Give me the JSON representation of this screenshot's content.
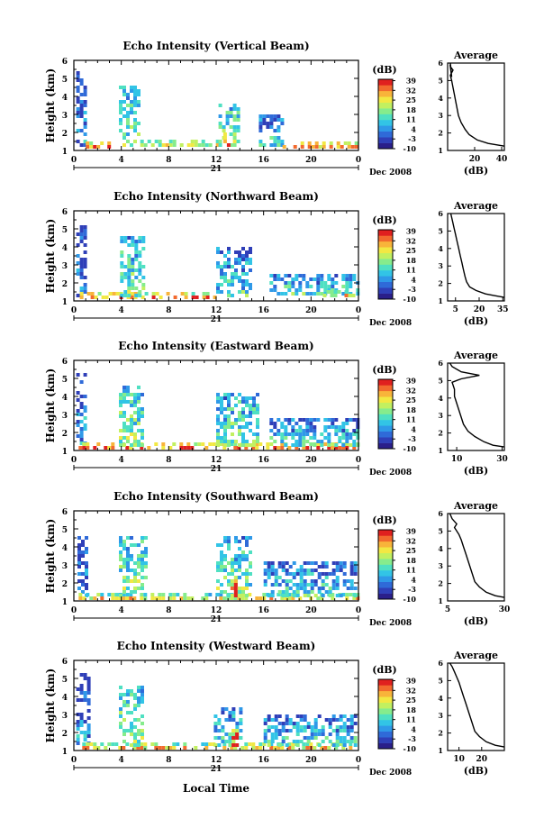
{
  "figure": {
    "xlabel": "Local Time",
    "date_label": "Dec 2008",
    "day_label": "21",
    "colorbar": {
      "unit": "(dB)",
      "ticks": [
        39,
        32,
        25,
        18,
        11,
        4,
        -3,
        -10
      ],
      "range": [
        -10,
        40
      ],
      "colors": [
        "#2a1f8a",
        "#2f3fb8",
        "#2f6ad8",
        "#2f99e8",
        "#32c4e6",
        "#4fe0c2",
        "#86ec8c",
        "#c2f060",
        "#f2e843",
        "#f8b43a",
        "#f26a2e",
        "#e0201f"
      ]
    },
    "time_ticks": [
      "0",
      "4",
      "8",
      "12",
      "16",
      "20",
      "0"
    ]
  },
  "chart_data": [
    {
      "type": "heatmap",
      "title": "Echo Intensity (Vertical Beam)",
      "xlabel": "",
      "ylabel": "Height (km)",
      "xlim": [
        0,
        24
      ],
      "ylim": [
        1,
        6
      ],
      "yticks": [
        1,
        2,
        3,
        4,
        5,
        6
      ],
      "x_unit": "hour",
      "cells": [
        {
          "x": [
            0.2,
            0.9
          ],
          "y": [
            1.2,
            5.4
          ],
          "level": 0.3
        },
        {
          "x": [
            1.0,
            3.0
          ],
          "y": [
            1.2,
            1.5
          ],
          "level": 0.95
        },
        {
          "x": [
            3.8,
            5.6
          ],
          "y": [
            1.3,
            4.6
          ],
          "level": 0.55
        },
        {
          "x": [
            5.6,
            12.2
          ],
          "y": [
            1.25,
            1.6
          ],
          "level": 0.7
        },
        {
          "x": [
            12.2,
            14.0
          ],
          "y": [
            1.2,
            3.6
          ],
          "level": 0.6
        },
        {
          "x": [
            12.6,
            13.0
          ],
          "y": [
            1.2,
            2.0
          ],
          "level": 1.0
        },
        {
          "x": [
            15.6,
            17.6
          ],
          "y": [
            1.2,
            3.0
          ],
          "level": 0.45
        },
        {
          "x": [
            17.6,
            23.8
          ],
          "y": [
            1.2,
            1.5
          ],
          "level": 0.85
        }
      ],
      "profile": {
        "title": "Average",
        "xlabel": "(dB)",
        "xlim": [
          0,
          42
        ],
        "xticks": [
          20,
          40
        ],
        "ylim": [
          1,
          6
        ],
        "x": [
          44,
          38,
          30,
          22,
          16,
          13,
          10,
          8,
          7,
          6,
          5,
          4,
          3,
          2,
          4,
          2,
          3,
          2
        ],
        "y": [
          1.25,
          1.3,
          1.4,
          1.6,
          1.9,
          2.2,
          2.6,
          3.0,
          3.4,
          3.8,
          4.2,
          4.6,
          5.0,
          5.3,
          5.6,
          5.8,
          5.2,
          6.0
        ]
      }
    },
    {
      "type": "heatmap",
      "title": "Echo Intensity (Northward Beam)",
      "xlabel": "",
      "ylabel": "Height (km)",
      "xlim": [
        0,
        24
      ],
      "ylim": [
        1,
        6
      ],
      "yticks": [
        1,
        2,
        3,
        4,
        5,
        6
      ],
      "x_unit": "hour",
      "cells": [
        {
          "x": [
            0.2,
            1.0
          ],
          "y": [
            1.3,
            5.2
          ],
          "level": 0.3
        },
        {
          "x": [
            0.5,
            11.8
          ],
          "y": [
            1.25,
            1.5
          ],
          "level": 0.9
        },
        {
          "x": [
            3.9,
            5.8
          ],
          "y": [
            1.3,
            4.6
          ],
          "level": 0.55
        },
        {
          "x": [
            12.0,
            15.0
          ],
          "y": [
            1.3,
            4.0
          ],
          "level": 0.45
        },
        {
          "x": [
            16.5,
            23.8
          ],
          "y": [
            1.3,
            2.5
          ],
          "level": 0.5
        },
        {
          "x": [
            21.0,
            23.5
          ],
          "y": [
            1.25,
            1.6
          ],
          "level": 0.8
        }
      ],
      "profile": {
        "title": "Average",
        "xlabel": "(dB)",
        "xlim": [
          0,
          36
        ],
        "xticks": [
          5,
          20,
          35
        ],
        "ylim": [
          1,
          6
        ],
        "x": [
          36,
          30,
          24,
          18,
          14,
          12,
          11,
          10,
          9,
          8,
          7,
          6,
          5,
          4,
          3,
          2
        ],
        "y": [
          1.2,
          1.3,
          1.4,
          1.6,
          1.8,
          2.1,
          2.4,
          2.8,
          3.2,
          3.6,
          4.0,
          4.4,
          4.8,
          5.2,
          5.6,
          6.0
        ]
      }
    },
    {
      "type": "heatmap",
      "title": "Echo Intensity (Eastward Beam)",
      "xlabel": "",
      "ylabel": "Height (km)",
      "xlim": [
        0,
        24
      ],
      "ylim": [
        1,
        6
      ],
      "yticks": [
        1,
        2,
        3,
        4,
        5,
        6
      ],
      "x_unit": "hour",
      "cells": [
        {
          "x": [
            0.2,
            1.0
          ],
          "y": [
            1.3,
            5.3
          ],
          "level": 0.35
        },
        {
          "x": [
            0.4,
            23.8
          ],
          "y": [
            1.2,
            1.45
          ],
          "level": 0.9
        },
        {
          "x": [
            3.8,
            5.8
          ],
          "y": [
            1.3,
            4.6
          ],
          "level": 0.6
        },
        {
          "x": [
            12.0,
            15.5
          ],
          "y": [
            1.3,
            4.2
          ],
          "level": 0.55
        },
        {
          "x": [
            16.5,
            23.8
          ],
          "y": [
            1.3,
            2.8
          ],
          "level": 0.45
        }
      ],
      "profile": {
        "title": "Average",
        "xlabel": "(dB)",
        "xlim": [
          6,
          31
        ],
        "xticks": [
          10,
          30
        ],
        "ylim": [
          1,
          6
        ],
        "x": [
          31,
          26,
          22,
          18,
          15,
          13,
          12,
          11,
          10,
          9,
          9,
          8,
          12,
          20,
          12,
          8,
          7
        ],
        "y": [
          1.2,
          1.3,
          1.5,
          1.8,
          2.1,
          2.5,
          2.9,
          3.3,
          3.7,
          4.1,
          4.5,
          4.9,
          5.1,
          5.3,
          5.5,
          5.8,
          6.0
        ]
      }
    },
    {
      "type": "heatmap",
      "title": "Echo Intensity (Southward Beam)",
      "xlabel": "",
      "ylabel": "Height (km)",
      "xlim": [
        0,
        24
      ],
      "ylim": [
        1,
        6
      ],
      "yticks": [
        1,
        2,
        3,
        4,
        5,
        6
      ],
      "x_unit": "hour",
      "cells": [
        {
          "x": [
            0.3,
            1.2
          ],
          "y": [
            1.3,
            4.8
          ],
          "level": 0.3
        },
        {
          "x": [
            0.4,
            23.8
          ],
          "y": [
            1.2,
            1.45
          ],
          "level": 0.75
        },
        {
          "x": [
            3.8,
            6.0
          ],
          "y": [
            1.3,
            4.6
          ],
          "level": 0.6
        },
        {
          "x": [
            12.0,
            15.0
          ],
          "y": [
            1.3,
            4.6
          ],
          "level": 0.55
        },
        {
          "x": [
            13.2,
            13.6
          ],
          "y": [
            1.2,
            2.4
          ],
          "level": 1.0
        },
        {
          "x": [
            16.0,
            23.8
          ],
          "y": [
            1.3,
            3.2
          ],
          "level": 0.45
        }
      ],
      "profile": {
        "title": "Average",
        "xlabel": "(dB)",
        "xlim": [
          5,
          30
        ],
        "xticks": [
          5,
          30
        ],
        "ylim": [
          1,
          6
        ],
        "x": [
          30,
          26,
          22,
          19,
          17,
          16,
          15,
          14,
          13,
          12,
          11,
          10,
          9,
          8,
          9,
          7,
          6
        ],
        "y": [
          1.2,
          1.3,
          1.5,
          1.8,
          2.1,
          2.5,
          2.9,
          3.3,
          3.7,
          4.1,
          4.5,
          4.8,
          5.0,
          5.2,
          5.4,
          5.7,
          6.0
        ]
      }
    },
    {
      "type": "heatmap",
      "title": "Echo Intensity (Westward Beam)",
      "xlabel": "",
      "ylabel": "Height (km)",
      "xlim": [
        0,
        24
      ],
      "ylim": [
        1,
        6
      ],
      "yticks": [
        1,
        2,
        3,
        4,
        5,
        6
      ],
      "x_unit": "hour",
      "cells": [
        {
          "x": [
            0.2,
            1.2
          ],
          "y": [
            1.3,
            5.3
          ],
          "level": 0.3
        },
        {
          "x": [
            0.4,
            23.8
          ],
          "y": [
            1.2,
            1.45
          ],
          "level": 0.8
        },
        {
          "x": [
            3.8,
            5.8
          ],
          "y": [
            1.3,
            4.6
          ],
          "level": 0.6
        },
        {
          "x": [
            11.8,
            14.0
          ],
          "y": [
            1.3,
            3.4
          ],
          "level": 0.5
        },
        {
          "x": [
            13.3,
            13.7
          ],
          "y": [
            1.2,
            2.2
          ],
          "level": 1.0
        },
        {
          "x": [
            16.0,
            23.8
          ],
          "y": [
            1.3,
            3.0
          ],
          "level": 0.45
        }
      ],
      "profile": {
        "title": "Average",
        "xlabel": "(dB)",
        "xlim": [
          5,
          30
        ],
        "xticks": [
          10,
          20
        ],
        "ylim": [
          1,
          6
        ],
        "x": [
          30,
          26,
          22,
          19,
          17,
          16,
          15,
          14,
          13,
          12,
          11,
          10,
          9,
          8,
          7,
          6
        ],
        "y": [
          1.2,
          1.3,
          1.5,
          1.8,
          2.1,
          2.5,
          2.9,
          3.3,
          3.7,
          4.1,
          4.5,
          4.9,
          5.2,
          5.5,
          5.8,
          6.0
        ]
      }
    }
  ]
}
